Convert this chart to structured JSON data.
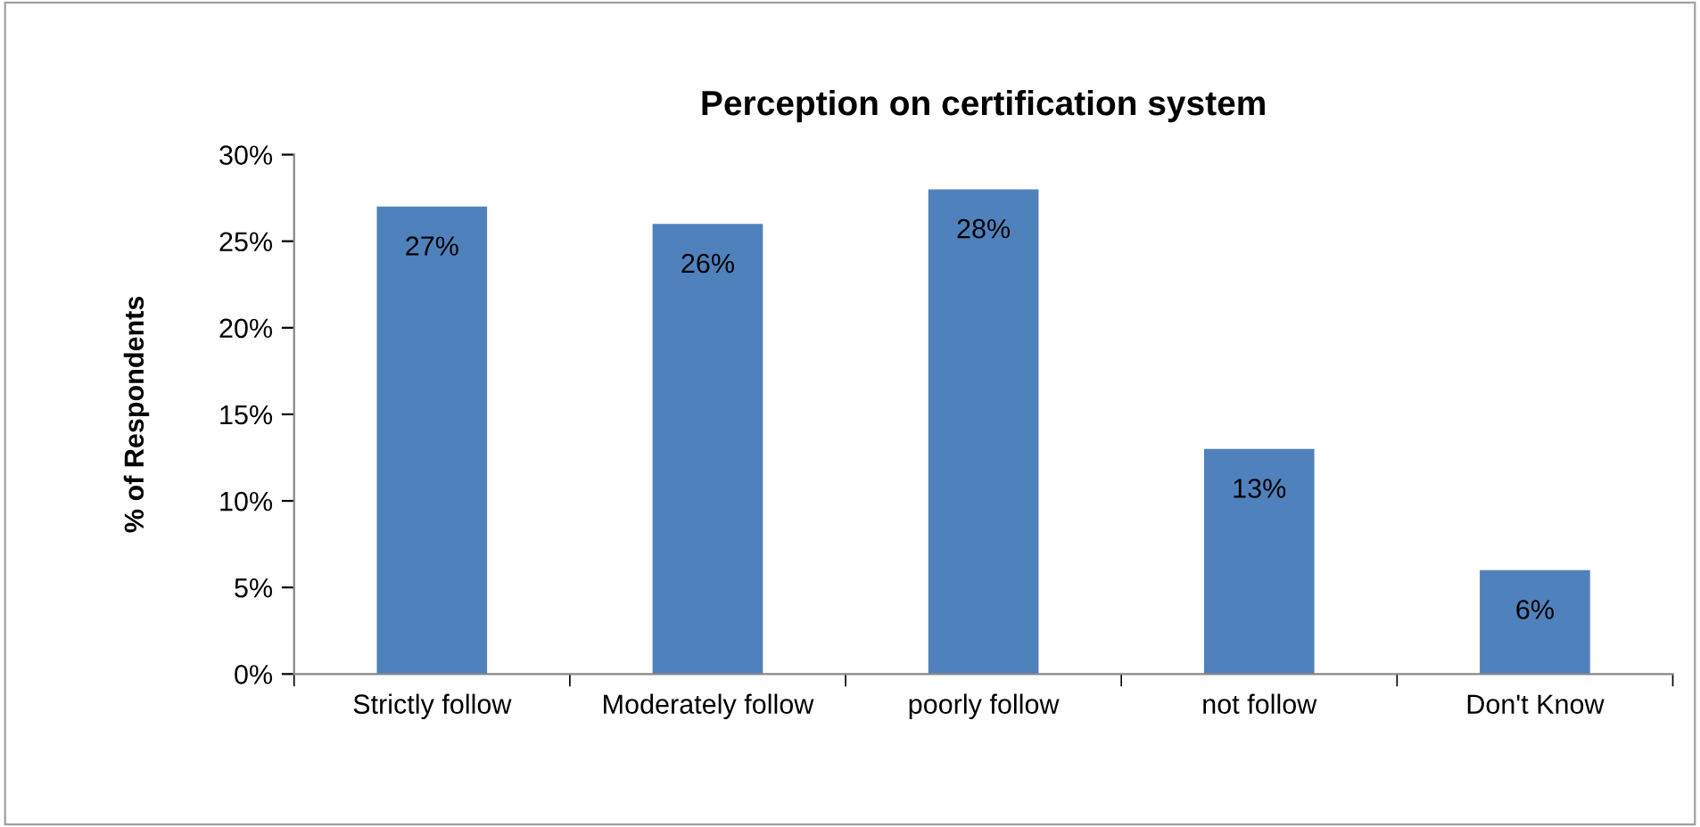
{
  "chart_data": {
    "type": "bar",
    "title": "Perception on certification system",
    "ylabel": "% of Respondents",
    "categories": [
      "Strictly follow",
      "Moderately follow",
      "poorly follow",
      "not follow",
      "Don't Know"
    ],
    "values": [
      27,
      26,
      28,
      13,
      6
    ],
    "value_labels": [
      "27%",
      "26%",
      "28%",
      "13%",
      "6%"
    ],
    "color": "#4f81bd",
    "ylim": [
      0,
      30
    ],
    "yticks": [
      {
        "value": 0,
        "label": "0%"
      },
      {
        "value": 5,
        "label": "5%"
      },
      {
        "value": 10,
        "label": "10%"
      },
      {
        "value": 15,
        "label": "15%"
      },
      {
        "value": 20,
        "label": "20%"
      },
      {
        "value": 25,
        "label": "25%"
      },
      {
        "value": 30,
        "label": "30%"
      }
    ],
    "grid": false,
    "legend": false
  }
}
